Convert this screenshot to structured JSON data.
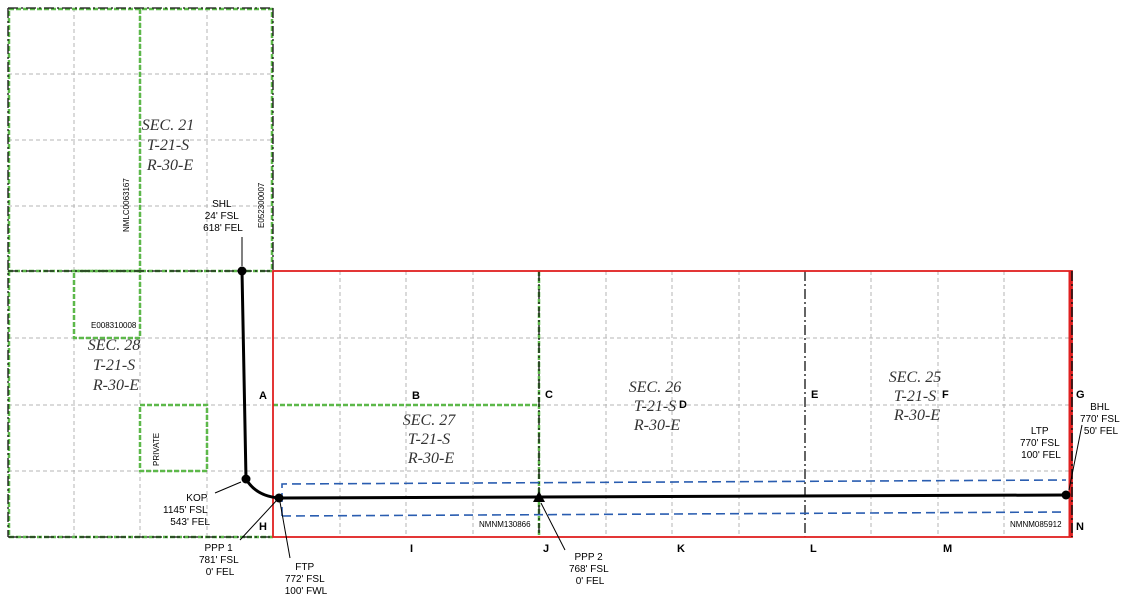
{
  "sections": [
    {
      "id": "sec21",
      "lines": [
        "SEC. 21",
        "T-21-S",
        "R-30-E"
      ]
    },
    {
      "id": "sec28",
      "lines": [
        "SEC. 28",
        "T-21-S",
        "R-30-E"
      ]
    },
    {
      "id": "sec27",
      "lines": [
        "SEC. 27",
        "T-21-S",
        "R-30-E"
      ]
    },
    {
      "id": "sec26",
      "lines": [
        "SEC. 26",
        "T-21-S",
        "R-30-E"
      ]
    },
    {
      "id": "sec25",
      "lines": [
        "SEC. 25",
        "T-21-S",
        "R-30-E"
      ]
    }
  ],
  "leases": {
    "nmlc": "NMLC0063167",
    "e0523": "E052300007",
    "e0083": "E008310008",
    "private": "PRIVATE",
    "nmnm130": "NMNM130866",
    "nmnm085": "NMNM085912"
  },
  "points": {
    "shl": [
      "SHL",
      "24' FSL",
      "618' FEL"
    ],
    "kop": [
      "KOP",
      "1145' FSL",
      "543' FEL"
    ],
    "ppp1": [
      "PPP 1",
      "781' FSL",
      "0' FEL"
    ],
    "ftp": [
      "FTP",
      "772' FSL",
      "100' FWL"
    ],
    "ppp2": [
      "PPP 2",
      "768' FSL",
      "0' FEL"
    ],
    "ltp": [
      "LTP",
      "770' FSL",
      "100' FEL"
    ],
    "bhl": [
      "BHL",
      "770' FSL",
      "50' FEL"
    ]
  },
  "letters": {
    "A": "A",
    "B": "B",
    "C": "C",
    "D": "D",
    "E": "E",
    "F": "F",
    "G": "G",
    "H": "H",
    "I": "I",
    "J": "J",
    "K": "K",
    "L": "L",
    "M": "M",
    "N": "N"
  },
  "colors": {
    "grid": "#b5b5b5",
    "green": "#5db84a",
    "red": "#e02020",
    "blue": "#2a5db0",
    "well": "#000000"
  }
}
